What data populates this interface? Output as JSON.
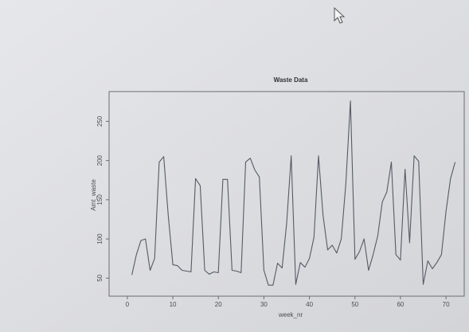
{
  "chart_data": {
    "type": "line",
    "title": "Waste Data",
    "x_label": "week_nr",
    "y_label": "Amt_waste",
    "x": [
      1,
      2,
      3,
      4,
      5,
      6,
      7,
      8,
      9,
      10,
      11,
      12,
      13,
      14,
      15,
      16,
      17,
      18,
      19,
      20,
      21,
      22,
      23,
      24,
      25,
      26,
      27,
      28,
      29,
      30,
      31,
      32,
      33,
      34,
      35,
      36,
      37,
      38,
      39,
      40,
      41,
      42,
      43,
      44,
      45,
      46,
      47,
      48,
      49,
      50,
      51,
      52,
      53,
      54,
      55,
      56,
      57,
      58,
      59,
      60,
      61,
      62,
      63,
      64,
      65,
      66,
      67,
      68,
      69,
      70,
      71,
      72
    ],
    "series": [
      {
        "name": "Amt_waste",
        "color": "#555a66",
        "values": [
          54,
          80,
          98,
          100,
          60,
          75,
          198,
          205,
          130,
          67,
          66,
          60,
          59,
          58,
          177,
          168,
          60,
          55,
          58,
          57,
          176,
          176,
          60,
          59,
          57,
          198,
          203,
          188,
          179,
          60,
          41,
          41,
          69,
          63,
          120,
          206,
          42,
          70,
          64,
          75,
          102,
          206,
          130,
          86,
          92,
          82,
          100,
          170,
          276,
          74,
          84,
          100,
          60,
          80,
          104,
          147,
          160,
          198,
          80,
          73,
          189,
          95,
          206,
          199,
          42,
          72,
          62,
          70,
          80,
          135,
          177,
          198
        ]
      }
    ],
    "xlim": [
      -4,
      74
    ],
    "ylim": [
      27,
      288
    ],
    "xticks": [
      0,
      10,
      20,
      30,
      40,
      50,
      60,
      70
    ],
    "yticks": [
      50,
      100,
      150,
      200,
      250
    ]
  }
}
